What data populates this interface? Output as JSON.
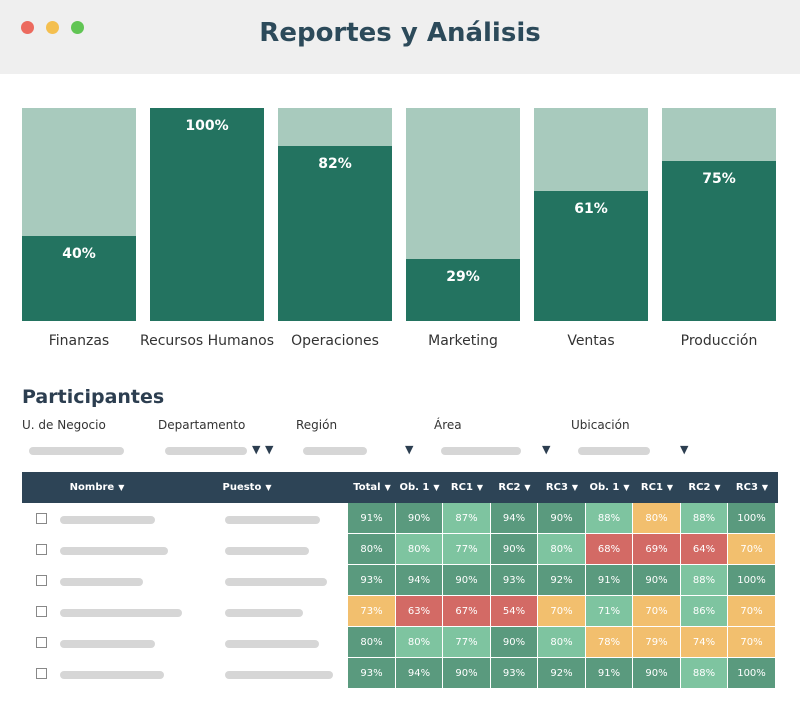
{
  "window": {
    "title": "Reportes y Análisis",
    "controls": [
      {
        "name": "close",
        "color": "#ec6a5e"
      },
      {
        "name": "minimize",
        "color": "#f4bf4f"
      },
      {
        "name": "maximize",
        "color": "#61c554"
      }
    ]
  },
  "chart_data": {
    "type": "bar",
    "stacked_percent": true,
    "categories": [
      "Finanzas",
      "Recursos Humanos",
      "Operaciones",
      "Marketing",
      "Ventas",
      "Producción"
    ],
    "values": [
      40,
      100,
      82,
      29,
      61,
      75
    ],
    "value_labels": [
      "40%",
      "100%",
      "82%",
      "29%",
      "61%",
      "75%"
    ],
    "ylim": [
      0,
      100
    ],
    "colors": {
      "fill": "#237360",
      "background": "#a8cabd"
    }
  },
  "participants": {
    "title": "Participantes",
    "filters": [
      {
        "label": "U. de Negocio"
      },
      {
        "label": "Departamento"
      },
      {
        "label": "Región"
      },
      {
        "label": "Área"
      },
      {
        "label": "Ubicación"
      }
    ],
    "columns": [
      "Nombre",
      "Puesto",
      "Total",
      "Ob. 1",
      "RC1",
      "RC2",
      "RC3",
      "Ob. 1",
      "RC1",
      "RC2",
      "RC3"
    ],
    "sort_icon": "▼",
    "colors": {
      "high": "#5a9a7e",
      "good": "#7ec4a0",
      "medium": "#f2bf6e",
      "low": "#d36a65"
    },
    "rows": [
      {
        "values": [
          "91%",
          "90%",
          "87%",
          "94%",
          "90%",
          "88%",
          "80%",
          "88%",
          "100%"
        ],
        "levels": [
          "high",
          "high",
          "good",
          "high",
          "high",
          "good",
          "medium",
          "good",
          "high"
        ]
      },
      {
        "values": [
          "80%",
          "80%",
          "77%",
          "90%",
          "80%",
          "68%",
          "69%",
          "64%",
          "70%"
        ],
        "levels": [
          "high",
          "good",
          "good",
          "high",
          "good",
          "low",
          "low",
          "low",
          "medium"
        ]
      },
      {
        "values": [
          "93%",
          "94%",
          "90%",
          "93%",
          "92%",
          "91%",
          "90%",
          "88%",
          "100%"
        ],
        "levels": [
          "high",
          "high",
          "high",
          "high",
          "high",
          "high",
          "high",
          "good",
          "high"
        ]
      },
      {
        "values": [
          "73%",
          "63%",
          "67%",
          "54%",
          "70%",
          "71%",
          "70%",
          "86%",
          "70%"
        ],
        "levels": [
          "medium",
          "low",
          "low",
          "low",
          "medium",
          "good",
          "medium",
          "good",
          "medium"
        ]
      },
      {
        "values": [
          "80%",
          "80%",
          "77%",
          "90%",
          "80%",
          "78%",
          "79%",
          "74%",
          "70%"
        ],
        "levels": [
          "high",
          "good",
          "good",
          "high",
          "good",
          "medium",
          "medium",
          "medium",
          "medium"
        ]
      },
      {
        "values": [
          "93%",
          "94%",
          "90%",
          "93%",
          "92%",
          "91%",
          "90%",
          "88%",
          "100%"
        ],
        "levels": [
          "high",
          "high",
          "high",
          "high",
          "high",
          "high",
          "high",
          "good",
          "high"
        ]
      }
    ]
  }
}
